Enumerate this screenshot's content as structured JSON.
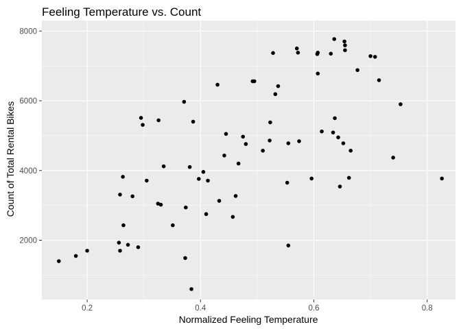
{
  "chart_data": {
    "type": "scatter",
    "title": "Feeling Temperature vs. Count",
    "xlabel": "Normalized Feeling Temperature",
    "ylabel": "Count of Total Rental Bikes",
    "xlim": [
      0.12,
      0.85
    ],
    "ylim": [
      300,
      8300
    ],
    "xticks": [
      0.2,
      0.4,
      0.6,
      0.8
    ],
    "xtick_labels": [
      "0.2",
      "0.4",
      "0.6",
      "0.8"
    ],
    "yticks": [
      2000,
      4000,
      6000,
      8000
    ],
    "ytick_labels": [
      "2000",
      "4000",
      "6000",
      "8000"
    ],
    "grid": true,
    "legend": "none",
    "colors": {
      "panel": "#ebebeb",
      "grid": "#ffffff",
      "point": "#000000"
    },
    "points": [
      {
        "x": 0.15,
        "y": 1400
      },
      {
        "x": 0.18,
        "y": 1550
      },
      {
        "x": 0.2,
        "y": 1700
      },
      {
        "x": 0.256,
        "y": 1930
      },
      {
        "x": 0.258,
        "y": 1700
      },
      {
        "x": 0.258,
        "y": 3310
      },
      {
        "x": 0.263,
        "y": 3820
      },
      {
        "x": 0.264,
        "y": 2430
      },
      {
        "x": 0.272,
        "y": 1870
      },
      {
        "x": 0.28,
        "y": 3260
      },
      {
        "x": 0.29,
        "y": 1800
      },
      {
        "x": 0.295,
        "y": 5510
      },
      {
        "x": 0.298,
        "y": 5310
      },
      {
        "x": 0.305,
        "y": 3710
      },
      {
        "x": 0.325,
        "y": 3050
      },
      {
        "x": 0.326,
        "y": 5440
      },
      {
        "x": 0.33,
        "y": 3020
      },
      {
        "x": 0.335,
        "y": 4120
      },
      {
        "x": 0.351,
        "y": 2430
      },
      {
        "x": 0.371,
        "y": 5970
      },
      {
        "x": 0.373,
        "y": 1490
      },
      {
        "x": 0.374,
        "y": 2940
      },
      {
        "x": 0.381,
        "y": 4100
      },
      {
        "x": 0.384,
        "y": 600
      },
      {
        "x": 0.387,
        "y": 5400
      },
      {
        "x": 0.397,
        "y": 3760
      },
      {
        "x": 0.405,
        "y": 3960
      },
      {
        "x": 0.41,
        "y": 2750
      },
      {
        "x": 0.413,
        "y": 3710
      },
      {
        "x": 0.43,
        "y": 6460
      },
      {
        "x": 0.433,
        "y": 3130
      },
      {
        "x": 0.442,
        "y": 4430
      },
      {
        "x": 0.445,
        "y": 5050
      },
      {
        "x": 0.457,
        "y": 2670
      },
      {
        "x": 0.462,
        "y": 3270
      },
      {
        "x": 0.467,
        "y": 4200
      },
      {
        "x": 0.475,
        "y": 4970
      },
      {
        "x": 0.48,
        "y": 4760
      },
      {
        "x": 0.492,
        "y": 6560
      },
      {
        "x": 0.495,
        "y": 6560
      },
      {
        "x": 0.51,
        "y": 4570
      },
      {
        "x": 0.522,
        "y": 4860
      },
      {
        "x": 0.523,
        "y": 5380
      },
      {
        "x": 0.528,
        "y": 7370
      },
      {
        "x": 0.532,
        "y": 6190
      },
      {
        "x": 0.537,
        "y": 6420
      },
      {
        "x": 0.553,
        "y": 3650
      },
      {
        "x": 0.555,
        "y": 1850
      },
      {
        "x": 0.555,
        "y": 4780
      },
      {
        "x": 0.57,
        "y": 7500
      },
      {
        "x": 0.572,
        "y": 7380
      },
      {
        "x": 0.574,
        "y": 4840
      },
      {
        "x": 0.596,
        "y": 3770
      },
      {
        "x": 0.606,
        "y": 7340
      },
      {
        "x": 0.607,
        "y": 7380
      },
      {
        "x": 0.607,
        "y": 6780
      },
      {
        "x": 0.614,
        "y": 5120
      },
      {
        "x": 0.63,
        "y": 7350
      },
      {
        "x": 0.634,
        "y": 5090
      },
      {
        "x": 0.636,
        "y": 7770
      },
      {
        "x": 0.637,
        "y": 5500
      },
      {
        "x": 0.643,
        "y": 4950
      },
      {
        "x": 0.646,
        "y": 3540
      },
      {
        "x": 0.652,
        "y": 4780
      },
      {
        "x": 0.654,
        "y": 7700
      },
      {
        "x": 0.655,
        "y": 7590
      },
      {
        "x": 0.655,
        "y": 7450
      },
      {
        "x": 0.662,
        "y": 3790
      },
      {
        "x": 0.665,
        "y": 4570
      },
      {
        "x": 0.677,
        "y": 6880
      },
      {
        "x": 0.7,
        "y": 7280
      },
      {
        "x": 0.708,
        "y": 7260
      },
      {
        "x": 0.715,
        "y": 6590
      },
      {
        "x": 0.74,
        "y": 4370
      },
      {
        "x": 0.753,
        "y": 5900
      },
      {
        "x": 0.826,
        "y": 3770
      }
    ]
  }
}
